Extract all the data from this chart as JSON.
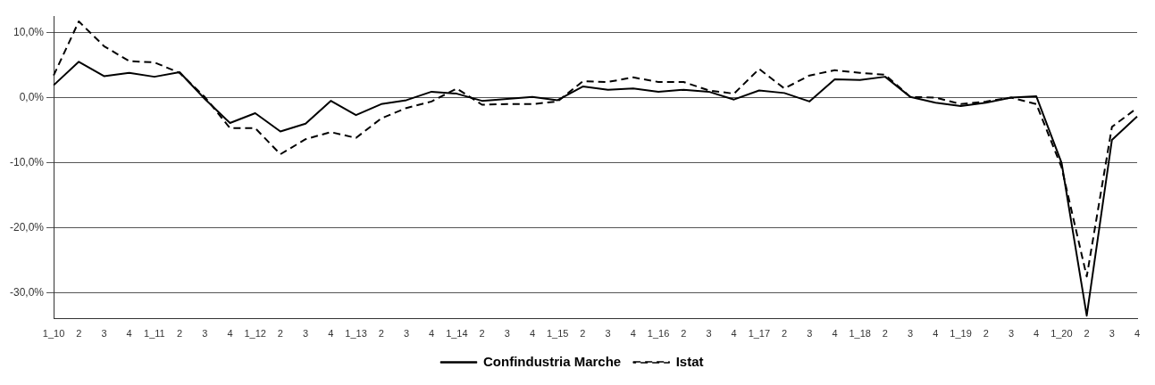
{
  "chart_data": {
    "type": "line",
    "categories": [
      "1_10",
      "2",
      "3",
      "4",
      "1_11",
      "2",
      "3",
      "4",
      "1_12",
      "2",
      "3",
      "4",
      "1_13",
      "2",
      "3",
      "4",
      "1_14",
      "2",
      "3",
      "4",
      "1_15",
      "2",
      "3",
      "4",
      "1_16",
      "2",
      "3",
      "4",
      "1_17",
      "2",
      "3",
      "4",
      "1_18",
      "2",
      "3",
      "4",
      "1_19",
      "2",
      "3",
      "4",
      "1_20",
      "2",
      "3",
      "4"
    ],
    "series": [
      {
        "name": "Confindustria Marche",
        "color": "#000000",
        "line_style": "solid",
        "values": [
          1.9,
          5.5,
          3.3,
          3.8,
          3.2,
          3.9,
          -0.2,
          -3.9,
          -2.4,
          -5.2,
          -4.0,
          -0.5,
          -2.7,
          -1.0,
          -0.4,
          0.9,
          0.6,
          -0.5,
          -0.2,
          0.1,
          -0.4,
          1.7,
          1.2,
          1.4,
          0.9,
          1.2,
          0.9,
          -0.3,
          1.1,
          0.7,
          -0.6,
          2.8,
          2.7,
          3.2,
          0.1,
          -0.8,
          -1.3,
          -0.8,
          0.0,
          0.2,
          -10.0,
          -33.5,
          -6.5,
          -2.9
        ]
      },
      {
        "name": "Istat",
        "color": "#000000",
        "line_style": "dashed",
        "values": [
          3.4,
          11.7,
          7.9,
          5.6,
          5.4,
          3.8,
          0.1,
          -4.7,
          -4.7,
          -8.7,
          -6.4,
          -5.3,
          -6.2,
          -3.2,
          -1.6,
          -0.6,
          1.4,
          -1.1,
          -1.0,
          -1.0,
          -0.6,
          2.5,
          2.4,
          3.1,
          2.4,
          2.4,
          1.1,
          0.6,
          4.4,
          1.4,
          3.4,
          4.2,
          3.8,
          3.5,
          0.1,
          0.0,
          -1.0,
          -0.6,
          0.0,
          -1.0,
          -10.7,
          -27.5,
          -4.5,
          -1.6
        ]
      }
    ],
    "ylim": [
      -34,
      12.5
    ],
    "yticks": [
      {
        "value": 10,
        "label": "10,0%"
      },
      {
        "value": 0,
        "label": "0,0%"
      },
      {
        "value": -10,
        "label": "-10,0%"
      },
      {
        "value": -20,
        "label": "-20,0%"
      },
      {
        "value": -30,
        "label": "-30,0%"
      }
    ],
    "grid": "y",
    "legend": "bottom",
    "marker": "none"
  }
}
